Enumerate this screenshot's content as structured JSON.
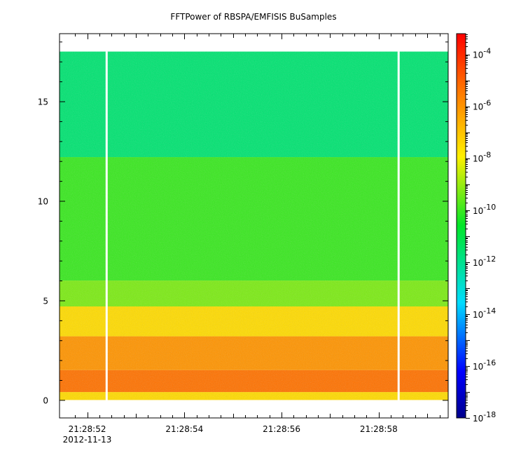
{
  "chart_data": {
    "type": "heatmap",
    "title": "FFTPower of RBSPA/EMFISIS  BuSamples",
    "xlabel": "",
    "ylabel": "",
    "x_ticks": [
      {
        "label": "21:28:52",
        "sub": "2012-11-13",
        "t": 0.57
      },
      {
        "label": "21:28:54",
        "sub": "",
        "t": 2.57
      },
      {
        "label": "21:28:56",
        "sub": "",
        "t": 4.57
      },
      {
        "label": "21:28:58",
        "sub": "",
        "t": 6.57
      }
    ],
    "xlim": [
      0,
      8.0
    ],
    "ylim": [
      -0.9,
      18.4
    ],
    "y_ticks": [
      0,
      5,
      10,
      15
    ],
    "data_extent": {
      "x": [
        0,
        8.0
      ],
      "y": [
        0,
        17.5
      ]
    },
    "data_gaps_x": [
      0.97,
      6.98
    ],
    "colorbar": {
      "scale": "log",
      "range_exp": [
        -18,
        -3.2
      ],
      "tick_exponents": [
        -4,
        -6,
        -8,
        -10,
        -12,
        -14,
        -16,
        -18
      ],
      "tick_base": "10"
    },
    "bands": [
      {
        "y0": 0.0,
        "y1": 0.4,
        "log_power": -7.5
      },
      {
        "y0": 0.4,
        "y1": 1.5,
        "log_power": -5.3
      },
      {
        "y0": 1.5,
        "y1": 3.2,
        "log_power": -6.0
      },
      {
        "y0": 3.2,
        "y1": 4.7,
        "log_power": -7.5
      },
      {
        "y0": 4.7,
        "y1": 6.0,
        "log_power": -9.3
      },
      {
        "y0": 6.0,
        "y1": 12.2,
        "log_power": -10.0
      },
      {
        "y0": 12.2,
        "y1": 17.5,
        "log_power": -11.6
      }
    ]
  }
}
